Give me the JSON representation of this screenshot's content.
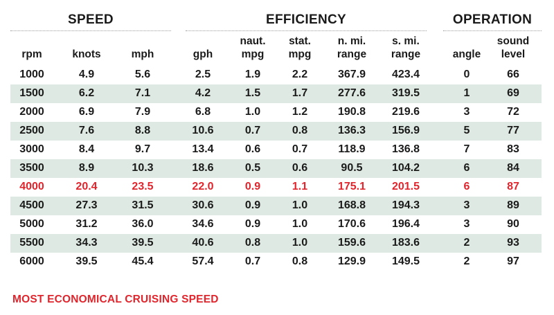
{
  "groups": {
    "speed": "SPEED",
    "efficiency": "EFFICIENCY",
    "operation": "OPERATION"
  },
  "columns": {
    "rpm": {
      "line1": "",
      "line2": "rpm"
    },
    "knots": {
      "line1": "",
      "line2": "knots"
    },
    "mph": {
      "line1": "",
      "line2": "mph"
    },
    "gph": {
      "line1": "",
      "line2": "gph"
    },
    "naut_mpg": {
      "line1": "naut.",
      "line2": "mpg"
    },
    "stat_mpg": {
      "line1": "stat.",
      "line2": "mpg"
    },
    "nmi_range": {
      "line1": "n. mi.",
      "line2": "range"
    },
    "smi_range": {
      "line1": "s. mi.",
      "line2": "range"
    },
    "angle": {
      "line1": "",
      "line2": "angle"
    },
    "sound": {
      "line1": "sound",
      "line2": "level"
    }
  },
  "rows": [
    [
      "1000",
      "4.9",
      "5.6",
      "2.5",
      "1.9",
      "2.2",
      "367.9",
      "423.4",
      "0",
      "66"
    ],
    [
      "1500",
      "6.2",
      "7.1",
      "4.2",
      "1.5",
      "1.7",
      "277.6",
      "319.5",
      "1",
      "69"
    ],
    [
      "2000",
      "6.9",
      "7.9",
      "6.8",
      "1.0",
      "1.2",
      "190.8",
      "219.6",
      "3",
      "72"
    ],
    [
      "2500",
      "7.6",
      "8.8",
      "10.6",
      "0.7",
      "0.8",
      "136.3",
      "156.9",
      "5",
      "77"
    ],
    [
      "3000",
      "8.4",
      "9.7",
      "13.4",
      "0.6",
      "0.7",
      "118.9",
      "136.8",
      "7",
      "83"
    ],
    [
      "3500",
      "8.9",
      "10.3",
      "18.6",
      "0.5",
      "0.6",
      "90.5",
      "104.2",
      "6",
      "84"
    ],
    [
      "4000",
      "20.4",
      "23.5",
      "22.0",
      "0.9",
      "1.1",
      "175.1",
      "201.5",
      "6",
      "87"
    ],
    [
      "4500",
      "27.3",
      "31.5",
      "30.6",
      "0.9",
      "1.0",
      "168.8",
      "194.3",
      "3",
      "89"
    ],
    [
      "5000",
      "31.2",
      "36.0",
      "34.6",
      "0.9",
      "1.0",
      "170.6",
      "196.4",
      "3",
      "90"
    ],
    [
      "5500",
      "34.3",
      "39.5",
      "40.6",
      "0.8",
      "1.0",
      "159.6",
      "183.6",
      "2",
      "93"
    ],
    [
      "6000",
      "39.5",
      "45.4",
      "57.4",
      "0.7",
      "0.8",
      "129.9",
      "149.5",
      "2",
      "97"
    ]
  ],
  "highlight_row_index": 6,
  "highlight_color": "#e0252d",
  "shade_color": "#dde9e2",
  "footnote": "MOST ECONOMICAL CRUISING SPEED"
}
